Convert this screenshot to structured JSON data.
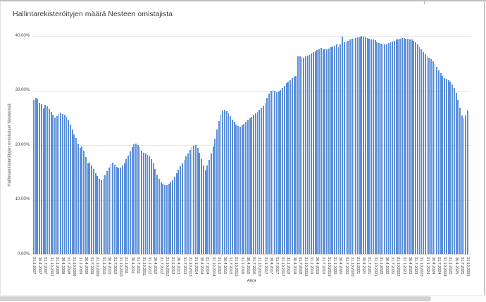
{
  "chart": {
    "title": "Hallintarekisteröityjen määrä Nesteen omistajista",
    "y_axis": {
      "title": "Hallintarekisteröityjen omistukset Nesteessä",
      "ticks": [
        {
          "label": "40.00%",
          "value": 40
        },
        {
          "label": "30.00%",
          "value": 30
        },
        {
          "label": "20.00%",
          "value": 20
        },
        {
          "label": "10.00%",
          "value": 10
        },
        {
          "label": "0.00%",
          "value": 0
        }
      ]
    },
    "x_axis": {
      "title": "Aika"
    }
  },
  "chart_data": {
    "type": "bar",
    "title": "Hallintarekisteröityjen määrä Nesteen omistajista",
    "xlabel": "Aika",
    "ylabel": "Hallintarekisteröityjen omistukset Nesteessä",
    "unit": "%",
    "ylim": [
      0,
      40
    ],
    "y_tick_values": [
      40,
      30,
      20,
      10,
      0
    ],
    "grid": true,
    "legend": "none",
    "bar_color": "#5b8ed8",
    "frequency": "monthly",
    "series_start": "2007-01",
    "series_end": "2025-10",
    "values": [
      28.2,
      28.7,
      28.4,
      27.7,
      27.5,
      26.7,
      27.4,
      27.1,
      26.6,
      26.1,
      25.5,
      25.0,
      25.3,
      25.7,
      25.9,
      25.7,
      25.5,
      25.2,
      24.6,
      23.8,
      22.9,
      22.0,
      21.3,
      20.3,
      19.5,
      19.7,
      19.0,
      17.8,
      16.6,
      16.8,
      16.2,
      15.6,
      14.9,
      14.3,
      13.8,
      13.5,
      13.8,
      14.4,
      15.2,
      15.9,
      16.5,
      16.8,
      16.4,
      16.0,
      15.7,
      15.9,
      16.2,
      16.6,
      17.4,
      18.1,
      18.9,
      19.6,
      20.1,
      20.3,
      20.0,
      19.6,
      19.0,
      18.6,
      18.4,
      18.2,
      18.0,
      17.4,
      16.6,
      15.6,
      14.6,
      13.8,
      13.2,
      12.9,
      12.7,
      12.7,
      12.9,
      13.2,
      13.6,
      14.2,
      14.9,
      15.5,
      16.1,
      16.7,
      17.3,
      17.9,
      18.5,
      19.1,
      19.6,
      19.9,
      20.0,
      19.5,
      18.6,
      17.4,
      16.2,
      15.4,
      16.2,
      17.3,
      18.5,
      19.8,
      21.2,
      22.8,
      24.4,
      25.6,
      26.3,
      26.4,
      26.2,
      25.8,
      25.3,
      24.7,
      24.2,
      23.8,
      23.5,
      23.4,
      23.6,
      23.9,
      24.3,
      24.6,
      24.9,
      25.2,
      25.5,
      25.8,
      26.1,
      26.4,
      26.8,
      27.2,
      27.8,
      28.6,
      29.4,
      30.0,
      30.1,
      29.9,
      29.7,
      29.8,
      30.1,
      30.5,
      30.9,
      31.3,
      31.6,
      31.9,
      32.2,
      32.5,
      32.7,
      36.2,
      36.3,
      36.1,
      36.0,
      36.2,
      36.4,
      36.5,
      36.8,
      37.0,
      37.2,
      37.4,
      37.6,
      37.8,
      37.6,
      37.5,
      37.6,
      37.7,
      37.9,
      38.1,
      38.2,
      38.4,
      37.9,
      38.5,
      39.9,
      38.8,
      38.9,
      39.1,
      39.3,
      39.5,
      39.5,
      39.6,
      39.7,
      39.8,
      40.0,
      39.9,
      39.7,
      39.6,
      39.5,
      39.4,
      39.3,
      39.2,
      38.9,
      38.7,
      38.6,
      38.5,
      38.4,
      38.5,
      38.7,
      38.8,
      39.0,
      39.1,
      39.3,
      39.4,
      39.5,
      39.6,
      39.6,
      39.5,
      39.5,
      39.4,
      39.3,
      39.1,
      38.8,
      38.4,
      38.0,
      37.5,
      37.0,
      36.6,
      36.3,
      36.0,
      35.7,
      35.3,
      34.8,
      34.3,
      33.7,
      33.1,
      32.6,
      32.3,
      32.1,
      31.9,
      31.6,
      31.1,
      30.4,
      29.5,
      28.3,
      26.8,
      25.4,
      24.9,
      25.4,
      26.3
    ],
    "x_tick_labels": [
      "31.1.2007",
      "30.4.2007",
      "31.7.2007",
      "31.10.2007",
      "31.1.2008",
      "30.4.2008",
      "31.7.2008",
      "31.10.2008",
      "31.1.2009",
      "30.4.2009",
      "31.7.2009",
      "31.10.2009",
      "31.1.2010",
      "30.4.2010",
      "31.7.2010",
      "31.10.2010",
      "31.1.2011",
      "30.4.2011",
      "31.7.2011",
      "31.10.2011",
      "31.1.2012",
      "30.4.2012",
      "31.7.2012",
      "31.10.2012",
      "31.1.2013",
      "30.4.2013",
      "31.7.2013",
      "31.10.2013",
      "31.1.2014",
      "30.4.2014",
      "31.7.2014",
      "31.10.2014",
      "31.1.2015",
      "30.4.2015",
      "31.7.2015",
      "31.10.2015",
      "31.1.2016",
      "30.4.2016",
      "31.7.2016",
      "31.10.2016",
      "31.1.2017",
      "30.4.2017",
      "31.7.2017",
      "31.10.2017",
      "31.1.2018",
      "30.4.2018",
      "31.7.2018",
      "31.10.2018",
      "31.1.2019",
      "30.4.2019",
      "31.7.2019",
      "31.10.2019",
      "31.1.2020",
      "30.4.2020",
      "31.7.2020",
      "31.10.2020",
      "31.1.2021",
      "30.4.2021",
      "31.7.2021",
      "31.10.2021",
      "31.1.2022",
      "30.4.2022",
      "31.7.2022",
      "31.10.2022",
      "31.1.2023",
      "30.4.2023",
      "31.7.2023",
      "31.10.2023",
      "31.1.2024",
      "30.4.2024",
      "31.7.2024",
      "31.10.2024",
      "31.1.2025",
      "30.4.2025",
      "31.7.2025",
      "31.10.2025"
    ]
  }
}
